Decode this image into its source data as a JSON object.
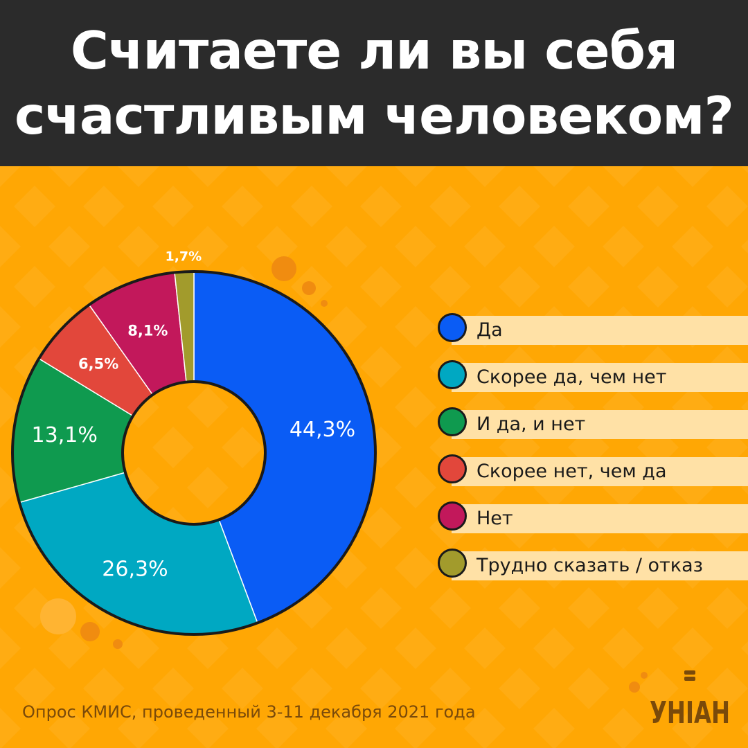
{
  "header": {
    "title_line1": "Считаете ли вы себя",
    "title_line2": "счастливым человеком?"
  },
  "chart_data": {
    "type": "pie",
    "title": "Считаете ли вы себя счастливым человеком?",
    "legend_position": "right",
    "slices": [
      {
        "label": "Да",
        "value": 44.3,
        "display": "44,3%",
        "color": "#0a5cf5"
      },
      {
        "label": "Скорее да, чем нет",
        "value": 26.3,
        "display": "26,3%",
        "color": "#00a8c2"
      },
      {
        "label": "И да, и нет",
        "value": 13.1,
        "display": "13,1%",
        "color": "#0f9a4f"
      },
      {
        "label": "Скорее нет, чем да",
        "value": 6.5,
        "display": "6,5%",
        "color": "#e2473b"
      },
      {
        "label": "Нет",
        "value": 8.1,
        "display": "8,1%",
        "color": "#c2185b"
      },
      {
        "label": "Трудно сказать / отказ",
        "value": 1.7,
        "display": "1,7%",
        "color": "#a29b2c"
      }
    ]
  },
  "footer": {
    "source": "Опрос КМИС, проведенный 3-11 декабря 2021 года",
    "logo_text": "УНІАН"
  }
}
